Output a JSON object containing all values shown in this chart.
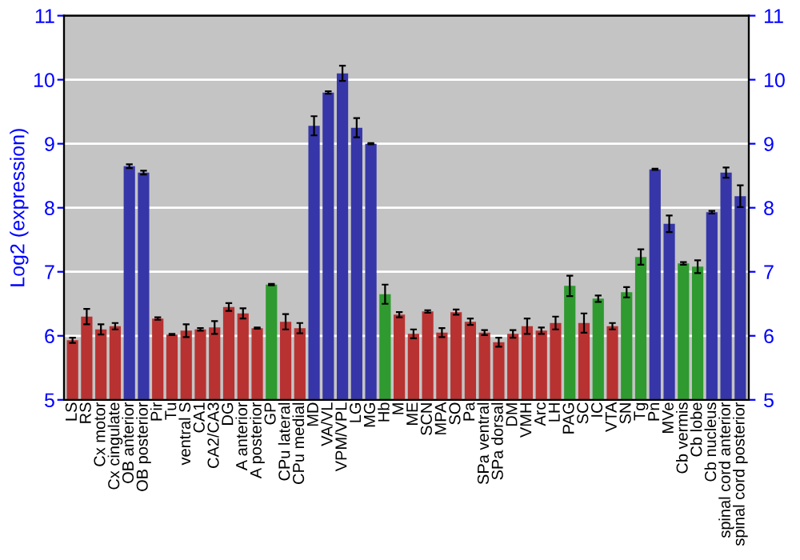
{
  "chart_data": {
    "type": "bar",
    "ylabel": "Log2 (expression)",
    "categories": [
      "LS",
      "RS",
      "Cx motor",
      "Cx cingulate",
      "OB anterior",
      "OB posterior",
      "Pir",
      "Tu",
      "ventral S",
      "CA1",
      "CA2/CA3",
      "DG",
      "A anterior",
      "A posterior",
      "GP",
      "CPu lateral",
      "CPu medial",
      "MD",
      "VA/VL",
      "VPM/VPL",
      "LG",
      "MG",
      "Hb",
      "M",
      "ME",
      "SCN",
      "MPA",
      "SO",
      "Pa",
      "SPa ventral",
      "SPa dorsal",
      "DM",
      "VMH",
      "Arc",
      "LH",
      "PAG",
      "SC",
      "IC",
      "VTA",
      "SN",
      "Tg",
      "Pn",
      "MVe",
      "Cb vermis",
      "Cb lobe",
      "Cb nucleus",
      "spinal cord anterior",
      "spinal cord posterior"
    ],
    "values": [
      5.93,
      6.3,
      6.1,
      6.15,
      8.65,
      8.55,
      6.27,
      6.02,
      6.08,
      6.1,
      6.13,
      6.45,
      6.35,
      6.12,
      6.8,
      6.22,
      6.12,
      9.28,
      9.8,
      10.1,
      9.25,
      9.0,
      6.65,
      6.33,
      6.03,
      6.38,
      6.05,
      6.37,
      6.22,
      6.05,
      5.9,
      6.03,
      6.15,
      6.08,
      6.2,
      6.78,
      6.2,
      6.58,
      6.15,
      6.68,
      7.23,
      8.6,
      7.75,
      7.13,
      7.08,
      7.93,
      8.55,
      8.18
    ],
    "errors": [
      0.04,
      0.12,
      0.08,
      0.05,
      0.03,
      0.03,
      0.02,
      0.01,
      0.1,
      0.02,
      0.1,
      0.06,
      0.08,
      0.01,
      0.01,
      0.12,
      0.08,
      0.15,
      0.02,
      0.12,
      0.15,
      0.01,
      0.15,
      0.04,
      0.07,
      0.02,
      0.07,
      0.04,
      0.05,
      0.04,
      0.07,
      0.06,
      0.12,
      0.05,
      0.1,
      0.16,
      0.15,
      0.05,
      0.05,
      0.08,
      0.12,
      0.01,
      0.13,
      0.02,
      0.1,
      0.02,
      0.08,
      0.17
    ],
    "colors": [
      "#b83232",
      "#b83232",
      "#b83232",
      "#b83232",
      "#3636a8",
      "#3636a8",
      "#b83232",
      "#b83232",
      "#b83232",
      "#b83232",
      "#b83232",
      "#b83232",
      "#b83232",
      "#b83232",
      "#2f9a2f",
      "#b83232",
      "#b83232",
      "#3636a8",
      "#3636a8",
      "#3636a8",
      "#3636a8",
      "#3636a8",
      "#2f9a2f",
      "#b83232",
      "#b83232",
      "#b83232",
      "#b83232",
      "#b83232",
      "#b83232",
      "#b83232",
      "#b83232",
      "#b83232",
      "#b83232",
      "#b83232",
      "#b83232",
      "#2f9a2f",
      "#b83232",
      "#2f9a2f",
      "#b83232",
      "#2f9a2f",
      "#2f9a2f",
      "#3636a8",
      "#3636a8",
      "#2f9a2f",
      "#2f9a2f",
      "#3636a8",
      "#3636a8",
      "#3636a8"
    ],
    "ylim": [
      5,
      11
    ],
    "yticks": [
      5,
      6,
      7,
      8,
      9,
      10,
      11
    ],
    "y2lim": [
      5,
      11
    ],
    "y2ticks": [
      5,
      6,
      7,
      8,
      9,
      10,
      11
    ],
    "grid": "y",
    "legend": false
  }
}
